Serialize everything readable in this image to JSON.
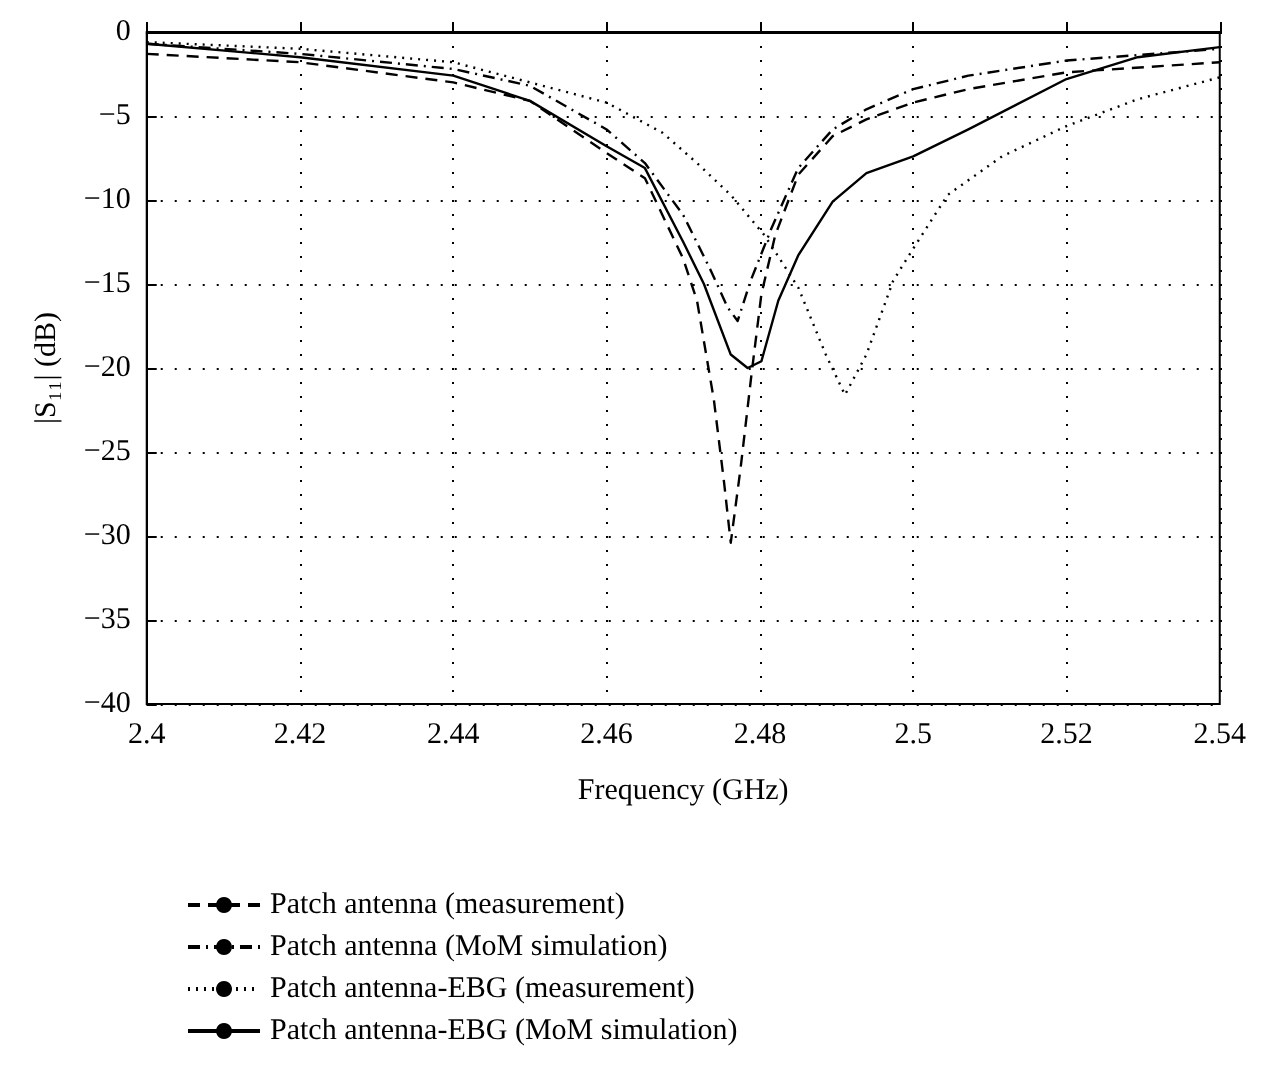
{
  "chart_data": {
    "type": "line",
    "xlabel": "Frequency (GHz)",
    "ylabel": "|S₁₁| (dB)",
    "xlim": [
      2.4,
      2.54
    ],
    "xticks": [
      2.4,
      2.42,
      2.44,
      2.46,
      2.48,
      2.5,
      2.52,
      2.54
    ],
    "ylim": [
      -40,
      0
    ],
    "yticks": [
      -40,
      -35,
      -30,
      -25,
      -20,
      -15,
      -10,
      -5,
      0
    ],
    "grid": true,
    "legend": "bottom",
    "marker": "none",
    "series": [
      {
        "name": "Patch antenna (measurement)",
        "color": "#000000",
        "line_style": "dashed",
        "x": [
          2.4,
          2.42,
          2.44,
          2.45,
          2.46,
          2.465,
          2.47,
          2.4718,
          2.474,
          2.4753,
          2.4762,
          2.4775,
          2.4789,
          2.4802,
          2.482,
          2.485,
          2.4895,
          2.4939,
          2.5,
          2.5072,
          2.52,
          2.54
        ],
        "values": [
          -1.3,
          -1.8,
          -3.0,
          -4.1,
          -7.2,
          -8.7,
          -13.5,
          -16,
          -21.9,
          -26.7,
          -30.4,
          -25.9,
          -20.4,
          -15.6,
          -12.1,
          -8.5,
          -6.2,
          -5.2,
          -4.2,
          -3.4,
          -2.4,
          -1.8
        ]
      },
      {
        "name": "Patch antenna (MoM simulation)",
        "color": "#000000",
        "line_style": "dashdot",
        "x": [
          2.4,
          2.42,
          2.44,
          2.45,
          2.46,
          2.465,
          2.47,
          2.4735,
          2.4758,
          2.4771,
          2.4788,
          2.4815,
          2.485,
          2.4895,
          2.4939,
          2.5,
          2.5072,
          2.52,
          2.54
        ],
        "values": [
          -0.7,
          -1.3,
          -2.2,
          -3.2,
          -5.8,
          -7.8,
          -10.9,
          -14.1,
          -16.4,
          -17.2,
          -14.8,
          -11.7,
          -8.1,
          -5.8,
          -4.6,
          -3.4,
          -2.6,
          -1.7,
          -1.0
        ]
      },
      {
        "name": "Patch antenna-EBG (measurement)",
        "color": "#000000",
        "line_style": "dotted",
        "x": [
          2.4,
          2.42,
          2.44,
          2.46,
          2.4673,
          2.4718,
          2.4762,
          2.4806,
          2.485,
          2.4886,
          2.4911,
          2.4939,
          2.4974,
          2.5,
          2.5045,
          2.5116,
          2.52,
          2.5293,
          2.54
        ],
        "values": [
          -0.6,
          -1.0,
          -1.8,
          -4.2,
          -6.0,
          -7.8,
          -9.7,
          -12.1,
          -15.2,
          -19.2,
          -21.6,
          -19.2,
          -14.8,
          -12.9,
          -9.7,
          -7.4,
          -5.6,
          -4.0,
          -2.7
        ]
      },
      {
        "name": "Patch antenna-EBG (MoM simulation)",
        "color": "#000000",
        "line_style": "solid",
        "x": [
          2.4,
          2.42,
          2.44,
          2.45,
          2.46,
          2.465,
          2.47,
          2.4727,
          2.4762,
          2.4784,
          2.4802,
          2.4824,
          2.485,
          2.4895,
          2.4939,
          2.5,
          2.5072,
          2.52,
          2.5293,
          2.54
        ],
        "values": [
          -0.7,
          -1.5,
          -2.6,
          -4.1,
          -6.8,
          -8.1,
          -12.5,
          -15.0,
          -19.2,
          -20.0,
          -19.6,
          -16.0,
          -13.3,
          -10.1,
          -8.4,
          -7.4,
          -5.8,
          -2.8,
          -1.5,
          -0.9
        ]
      }
    ]
  }
}
